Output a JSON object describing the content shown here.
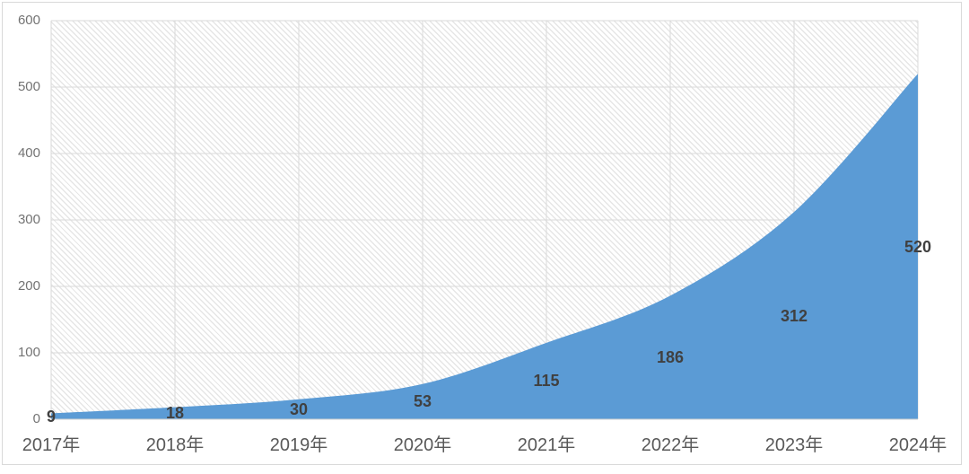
{
  "chart_data": {
    "type": "area",
    "title": "",
    "categories": [
      "2017年",
      "2018年",
      "2019年",
      "2020年",
      "2021年",
      "2022年",
      "2023年",
      "2024年"
    ],
    "series": [
      {
        "name": "",
        "values": [
          9,
          18,
          30,
          53,
          115,
          186,
          312,
          520
        ]
      }
    ],
    "data_labels": [
      "9",
      "18",
      "30",
      "53",
      "115",
      "186",
      "312",
      "520"
    ],
    "xlabel": "",
    "ylabel": "",
    "ylim": [
      0,
      600
    ],
    "yticks": [
      "0",
      "100",
      "200",
      "300",
      "400",
      "500",
      "600"
    ],
    "grid": {
      "horizontal": true,
      "vertical": true
    },
    "legend_position": "none",
    "smooth": true,
    "data_label_position": "center",
    "plot_background": "diagonal-hatch"
  },
  "colors": {
    "area_fill": "#5B9BD5",
    "gridline": "#d9d9d9",
    "axis_line": "#d0d0d0",
    "y_tick_label": "#737373",
    "x_category_label": "#595959",
    "data_label": "#404040",
    "chart_border": "#d9d9d9",
    "hatch_line": "#e6e6e6",
    "background": "#ffffff"
  }
}
